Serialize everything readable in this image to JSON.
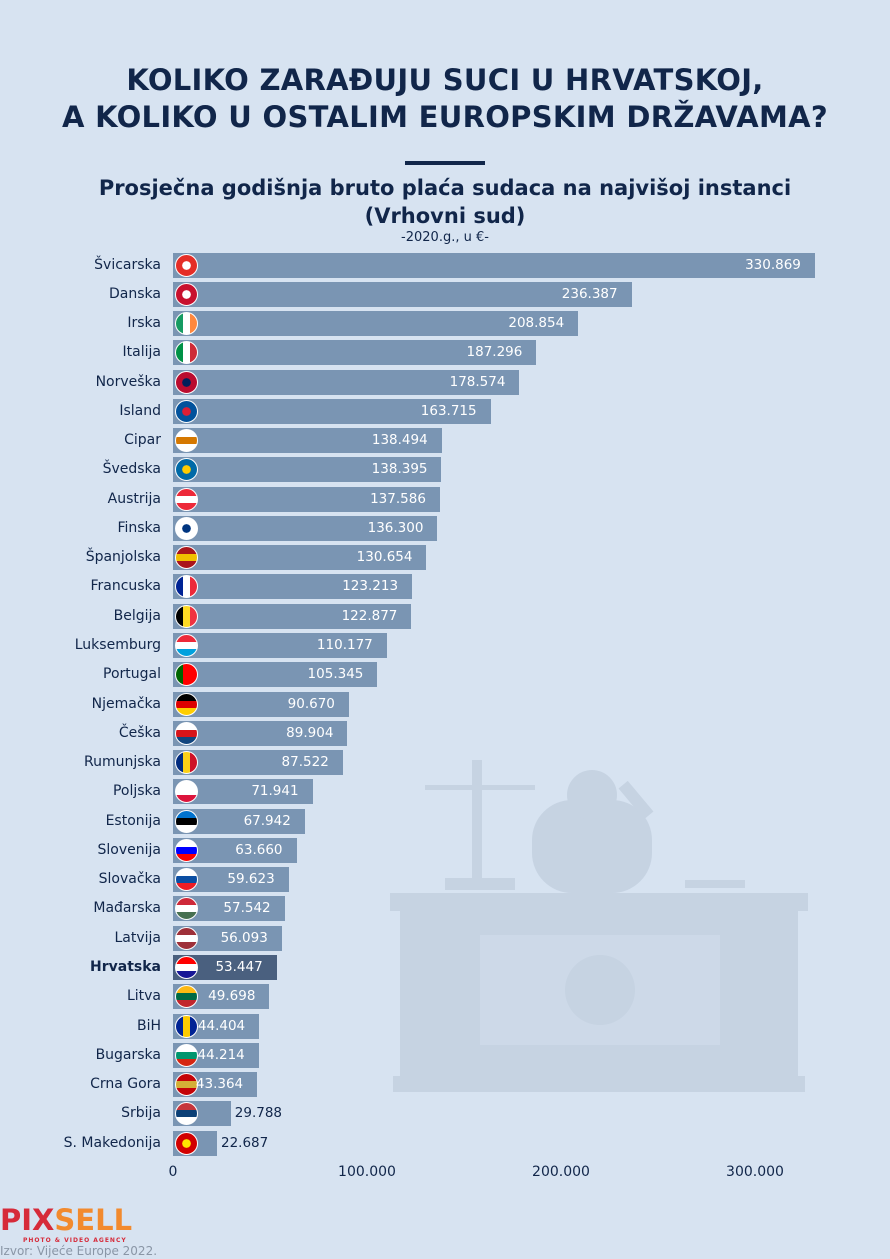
{
  "title_line1": "KOLIKO ZARAĐUJU SUCI U HRVATSKOJ,",
  "title_line2": "A KOLIKO U OSTALIM EUROPSKIM DRŽAVAMA?",
  "logo": {
    "part1": "PIX",
    "part2": "SELL",
    "tagline": "PHOTO & VIDEO AGENCY"
  },
  "source": "Izvor: Vijeće Europe 2022.",
  "colors": {
    "bar": "#7a95b3",
    "highlight": "#4a607f",
    "text": "#11264a",
    "background": "#d7e3f1"
  },
  "chart_data": {
    "type": "bar",
    "orientation": "horizontal",
    "title": "Prosječna godišnja bruto plaća sudaca na najvišoj instanci",
    "title_line2": "(Vrhovni sud)",
    "subtitle": "-2020.g., u €-",
    "xlim": [
      0,
      330869
    ],
    "xticks": [
      "0",
      "100.000",
      "200.000",
      "300.000"
    ],
    "xtick_values": [
      0,
      100000,
      200000,
      300000
    ],
    "grid": false,
    "highlight": "Hrvatska",
    "categories": [
      "Švicarska",
      "Danska",
      "Irska",
      "Italija",
      "Norveška",
      "Island",
      "Cipar",
      "Švedska",
      "Austrija",
      "Finska",
      "Španjolska",
      "Francuska",
      "Belgija",
      "Luksemburg",
      "Portugal",
      "Njemačka",
      "Češka",
      "Rumunjska",
      "Poljska",
      "Estonija",
      "Slovenija",
      "Slovačka",
      "Mađarska",
      "Latvija",
      "Hrvatska",
      "Litva",
      "BiH",
      "Bugarska",
      "Crna Gora",
      "Srbija",
      "S. Makedonija"
    ],
    "values": [
      330869,
      236387,
      208854,
      187296,
      178574,
      163715,
      138494,
      138395,
      137586,
      136300,
      130654,
      123213,
      122877,
      110177,
      105345,
      90670,
      89904,
      87522,
      71941,
      67942,
      63660,
      59623,
      57542,
      56093,
      53447,
      49698,
      44404,
      44214,
      43364,
      29788,
      22687
    ],
    "labels": [
      "330.869",
      "236.387",
      "208.854",
      "187.296",
      "178.574",
      "163.715",
      "138.494",
      "138.395",
      "137.586",
      "136.300",
      "130.654",
      "123.213",
      "122.877",
      "110.177",
      "105.345",
      "90.670",
      "89.904",
      "87.522",
      "71.941",
      "67.942",
      "63.660",
      "59.623",
      "57.542",
      "56.093",
      "53.447",
      "49.698",
      "44.404",
      "44.214",
      "43.364",
      "29.788",
      "22.687"
    ],
    "flag_icons": [
      {
        "dir": "c",
        "c": [
          "#e52d27",
          "#ffffff"
        ]
      },
      {
        "dir": "c",
        "c": [
          "#c8102e",
          "#ffffff"
        ]
      },
      {
        "dir": "v",
        "c": [
          "#169b62",
          "#ffffff",
          "#ff883e"
        ]
      },
      {
        "dir": "v",
        "c": [
          "#009246",
          "#ffffff",
          "#ce2b37"
        ]
      },
      {
        "dir": "c",
        "c": [
          "#ba0c2f",
          "#00205b"
        ]
      },
      {
        "dir": "c",
        "c": [
          "#02529c",
          "#dc1e35"
        ]
      },
      {
        "dir": "h",
        "c": [
          "#ffffff",
          "#d57800",
          "#ffffff"
        ]
      },
      {
        "dir": "c",
        "c": [
          "#006aa7",
          "#fecc00"
        ]
      },
      {
        "dir": "h",
        "c": [
          "#ed2939",
          "#ffffff",
          "#ed2939"
        ]
      },
      {
        "dir": "c",
        "c": [
          "#ffffff",
          "#003580"
        ]
      },
      {
        "dir": "h",
        "c": [
          "#aa151b",
          "#f1bf00",
          "#aa151b"
        ]
      },
      {
        "dir": "v",
        "c": [
          "#002395",
          "#ffffff",
          "#ed2939"
        ]
      },
      {
        "dir": "v",
        "c": [
          "#000000",
          "#fdda24",
          "#ef3340"
        ]
      },
      {
        "dir": "h",
        "c": [
          "#ed2939",
          "#ffffff",
          "#00a1de"
        ]
      },
      {
        "dir": "v",
        "c": [
          "#006600",
          "#ff0000",
          "#ff0000"
        ]
      },
      {
        "dir": "h",
        "c": [
          "#000000",
          "#dd0000",
          "#ffce00"
        ]
      },
      {
        "dir": "h",
        "c": [
          "#ffffff",
          "#d7141a",
          "#11457e"
        ]
      },
      {
        "dir": "v",
        "c": [
          "#002b7f",
          "#fcd116",
          "#ce1126"
        ]
      },
      {
        "dir": "h",
        "c": [
          "#ffffff",
          "#ffffff",
          "#dc143c"
        ]
      },
      {
        "dir": "h",
        "c": [
          "#0072ce",
          "#000000",
          "#ffffff"
        ]
      },
      {
        "dir": "h",
        "c": [
          "#ffffff",
          "#0000ff",
          "#ff0000"
        ]
      },
      {
        "dir": "h",
        "c": [
          "#ffffff",
          "#0b4ea2",
          "#ee1c25"
        ]
      },
      {
        "dir": "h",
        "c": [
          "#ce2939",
          "#ffffff",
          "#477050"
        ]
      },
      {
        "dir": "h",
        "c": [
          "#9e3039",
          "#ffffff",
          "#9e3039"
        ]
      },
      {
        "dir": "h",
        "c": [
          "#ff0000",
          "#ffffff",
          "#171796"
        ]
      },
      {
        "dir": "h",
        "c": [
          "#fdb913",
          "#006a44",
          "#c1272d"
        ]
      },
      {
        "dir": "v",
        "c": [
          "#002395",
          "#fecb00",
          "#002395"
        ]
      },
      {
        "dir": "h",
        "c": [
          "#ffffff",
          "#00966e",
          "#d62612"
        ]
      },
      {
        "dir": "h",
        "c": [
          "#c40308",
          "#d4af37",
          "#c40308"
        ]
      },
      {
        "dir": "h",
        "c": [
          "#c6363c",
          "#0c4076",
          "#ffffff"
        ]
      },
      {
        "dir": "c",
        "c": [
          "#d20000",
          "#ffe600"
        ]
      }
    ]
  }
}
